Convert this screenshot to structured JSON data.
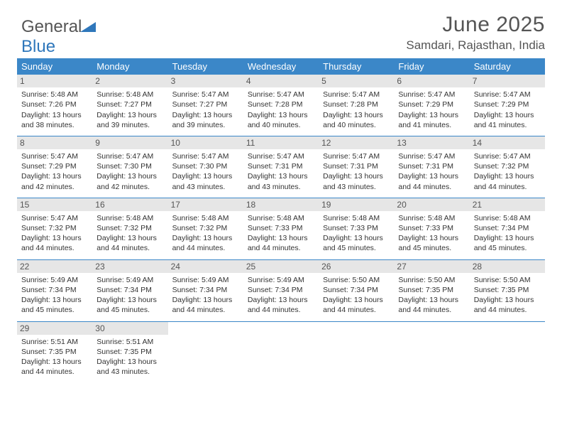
{
  "logo": {
    "text_gray": "General",
    "text_blue": "Blue"
  },
  "header": {
    "month_title": "June 2025",
    "location": "Samdari, Rajasthan, India"
  },
  "colors": {
    "header_bg": "#3b87c8",
    "header_text": "#ffffff",
    "daynum_bg": "#e6e6e6",
    "body_text": "#333333",
    "accent": "#2f77bb"
  },
  "weekdays": [
    "Sunday",
    "Monday",
    "Tuesday",
    "Wednesday",
    "Thursday",
    "Friday",
    "Saturday"
  ],
  "weeks": [
    [
      {
        "n": "1",
        "sr": "5:48 AM",
        "ss": "7:26 PM",
        "dh": "13",
        "dm": "38"
      },
      {
        "n": "2",
        "sr": "5:48 AM",
        "ss": "7:27 PM",
        "dh": "13",
        "dm": "39"
      },
      {
        "n": "3",
        "sr": "5:47 AM",
        "ss": "7:27 PM",
        "dh": "13",
        "dm": "39"
      },
      {
        "n": "4",
        "sr": "5:47 AM",
        "ss": "7:28 PM",
        "dh": "13",
        "dm": "40"
      },
      {
        "n": "5",
        "sr": "5:47 AM",
        "ss": "7:28 PM",
        "dh": "13",
        "dm": "40"
      },
      {
        "n": "6",
        "sr": "5:47 AM",
        "ss": "7:29 PM",
        "dh": "13",
        "dm": "41"
      },
      {
        "n": "7",
        "sr": "5:47 AM",
        "ss": "7:29 PM",
        "dh": "13",
        "dm": "41"
      }
    ],
    [
      {
        "n": "8",
        "sr": "5:47 AM",
        "ss": "7:29 PM",
        "dh": "13",
        "dm": "42"
      },
      {
        "n": "9",
        "sr": "5:47 AM",
        "ss": "7:30 PM",
        "dh": "13",
        "dm": "42"
      },
      {
        "n": "10",
        "sr": "5:47 AM",
        "ss": "7:30 PM",
        "dh": "13",
        "dm": "43"
      },
      {
        "n": "11",
        "sr": "5:47 AM",
        "ss": "7:31 PM",
        "dh": "13",
        "dm": "43"
      },
      {
        "n": "12",
        "sr": "5:47 AM",
        "ss": "7:31 PM",
        "dh": "13",
        "dm": "43"
      },
      {
        "n": "13",
        "sr": "5:47 AM",
        "ss": "7:31 PM",
        "dh": "13",
        "dm": "44"
      },
      {
        "n": "14",
        "sr": "5:47 AM",
        "ss": "7:32 PM",
        "dh": "13",
        "dm": "44"
      }
    ],
    [
      {
        "n": "15",
        "sr": "5:47 AM",
        "ss": "7:32 PM",
        "dh": "13",
        "dm": "44"
      },
      {
        "n": "16",
        "sr": "5:48 AM",
        "ss": "7:32 PM",
        "dh": "13",
        "dm": "44"
      },
      {
        "n": "17",
        "sr": "5:48 AM",
        "ss": "7:32 PM",
        "dh": "13",
        "dm": "44"
      },
      {
        "n": "18",
        "sr": "5:48 AM",
        "ss": "7:33 PM",
        "dh": "13",
        "dm": "44"
      },
      {
        "n": "19",
        "sr": "5:48 AM",
        "ss": "7:33 PM",
        "dh": "13",
        "dm": "45"
      },
      {
        "n": "20",
        "sr": "5:48 AM",
        "ss": "7:33 PM",
        "dh": "13",
        "dm": "45"
      },
      {
        "n": "21",
        "sr": "5:48 AM",
        "ss": "7:34 PM",
        "dh": "13",
        "dm": "45"
      }
    ],
    [
      {
        "n": "22",
        "sr": "5:49 AM",
        "ss": "7:34 PM",
        "dh": "13",
        "dm": "45"
      },
      {
        "n": "23",
        "sr": "5:49 AM",
        "ss": "7:34 PM",
        "dh": "13",
        "dm": "45"
      },
      {
        "n": "24",
        "sr": "5:49 AM",
        "ss": "7:34 PM",
        "dh": "13",
        "dm": "44"
      },
      {
        "n": "25",
        "sr": "5:49 AM",
        "ss": "7:34 PM",
        "dh": "13",
        "dm": "44"
      },
      {
        "n": "26",
        "sr": "5:50 AM",
        "ss": "7:34 PM",
        "dh": "13",
        "dm": "44"
      },
      {
        "n": "27",
        "sr": "5:50 AM",
        "ss": "7:35 PM",
        "dh": "13",
        "dm": "44"
      },
      {
        "n": "28",
        "sr": "5:50 AM",
        "ss": "7:35 PM",
        "dh": "13",
        "dm": "44"
      }
    ],
    [
      {
        "n": "29",
        "sr": "5:51 AM",
        "ss": "7:35 PM",
        "dh": "13",
        "dm": "44"
      },
      {
        "n": "30",
        "sr": "5:51 AM",
        "ss": "7:35 PM",
        "dh": "13",
        "dm": "43"
      },
      null,
      null,
      null,
      null,
      null
    ]
  ],
  "labels": {
    "sunrise": "Sunrise:",
    "sunset": "Sunset:",
    "daylight": "Daylight:",
    "hours": "hours",
    "and": "and",
    "minutes": "minutes."
  }
}
